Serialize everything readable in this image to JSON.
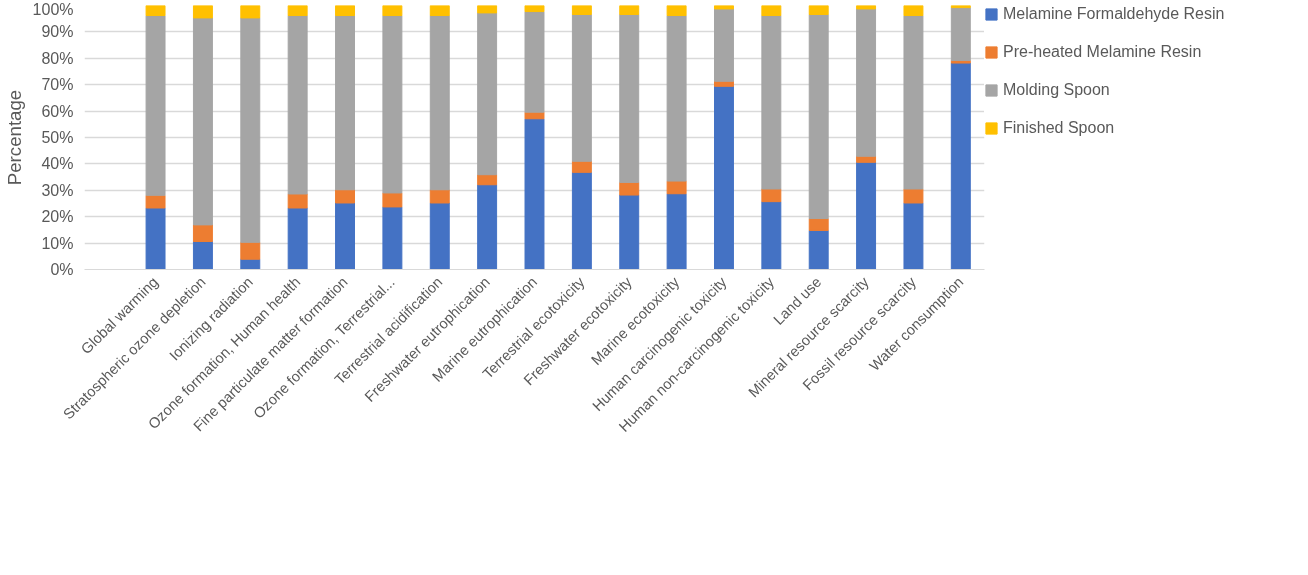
{
  "chart_data": {
    "type": "bar",
    "stacked": true,
    "ylabel": "Percentage",
    "legend": "right",
    "grid": "y",
    "categories": [
      null,
      "Global warming",
      "Stratospheric ozone depletion",
      "Ionizing radiation",
      "Ozone formation, Human health",
      "Fine particulate matter formation",
      "Ozone formation, Terrestrial...",
      "Terrestrial acidification",
      "Freshwater eutrophication",
      "Marine eutrophication",
      "Terrestrial ecotoxicity",
      "Freshwater ecotoxicity",
      "Marine ecotoxicity",
      "Human carcinogenic toxicity",
      "Human non-carcinogenic toxicity",
      "Land use",
      "Mineral resource scarcity",
      "Fossil resource scarcity",
      "Water consumption"
    ],
    "ylim": [
      0,
      100
    ],
    "yticks": [
      {
        "value": 0,
        "label": "0%"
      },
      {
        "value": 10,
        "label": "10%"
      },
      {
        "value": 20,
        "label": "20%"
      },
      {
        "value": 30,
        "label": "30%"
      },
      {
        "value": 40,
        "label": "40%"
      },
      {
        "value": 50,
        "label": "50%"
      },
      {
        "value": 60,
        "label": "60%"
      },
      {
        "value": 70,
        "label": "70%"
      },
      {
        "value": 80,
        "label": "80%"
      },
      {
        "value": 90,
        "label": "90%"
      },
      {
        "value": 100,
        "label": "100%"
      }
    ],
    "series": [
      {
        "name": "Melamine Formaldehyde Resin",
        "color": "#4472c4",
        "values": [
          null,
          23.3,
          10.6,
          3.9,
          23.3,
          25.2,
          23.7,
          25.2,
          32.1,
          57.1,
          36.8,
          28.2,
          28.7,
          69.4,
          25.7,
          14.8,
          40.6,
          25.2,
          78.2
        ]
      },
      {
        "name": "Pre-heated Melamine Resin",
        "color": "#ed7d31",
        "values": [
          null,
          4.8,
          6.3,
          6.4,
          5.3,
          5.0,
          5.3,
          5.0,
          3.8,
          2.5,
          4.2,
          4.8,
          4.8,
          1.9,
          4.8,
          4.5,
          2.3,
          5.3,
          1.0
        ]
      },
      {
        "name": "Molding Spoon",
        "color": "#a5a5a5",
        "values": [
          null,
          68.1,
          78.4,
          85.0,
          67.6,
          66.0,
          67.2,
          66.0,
          61.3,
          38.1,
          55.6,
          63.6,
          62.7,
          27.4,
          65.7,
          77.3,
          55.8,
          65.7,
          20.0
        ]
      },
      {
        "name": "Finished Spoon",
        "color": "#ffc000",
        "values": [
          null,
          3.8,
          4.7,
          4.7,
          3.8,
          3.8,
          3.8,
          3.8,
          2.8,
          2.3,
          3.4,
          3.4,
          3.8,
          1.3,
          3.8,
          3.4,
          1.3,
          3.8,
          0.8
        ]
      }
    ]
  }
}
